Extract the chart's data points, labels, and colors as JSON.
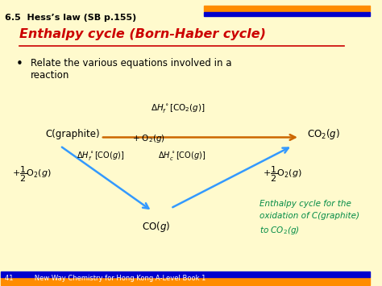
{
  "bg_color": "#FFFACD",
  "header_text": "6.5  Hess’s law (SB p.155)",
  "title_text": "Enthalpy cycle (Born-Haber cycle)",
  "title_color": "#CC0000",
  "bullet_text": "Relate the various equations involved in a\nreaction",
  "top_bar_colors": [
    "#FF8C00",
    "#0000CD"
  ],
  "footer_text": "41          New Way Chemistry for Hong Kong A-Level Book 1",
  "footer_bar_colors": [
    "#FF8C00",
    "#0000CD"
  ],
  "arrow_top_color": "#CC6600",
  "arrow_left_color": "#3399FF",
  "arrow_right_color": "#3399FF",
  "node_C_graphite": "C(graphite)",
  "node_CO2": "CO$_2$($g$)",
  "node_CO": "CO($g$)",
  "label_top_line1": "$\\Delta H_f^\\circ$[CO$_2$($g$)]",
  "label_top_line2": "+ O$_2$($g$)",
  "label_left_side": "$+ \\dfrac{1}{2}$O$_2$($g$)",
  "label_right_side": "$+ \\dfrac{1}{2}$O$_2$($g$)",
  "label_left_arrow1": "$\\Delta H_f^\\circ$[CO($g$)]",
  "label_left_arrow2": "$\\Delta H_c^\\circ$[CO($g$)]",
  "annotation_color": "#008B45",
  "annotation_text": "Enthalpy cycle for the\noxidation of C(graphite)\nto CO$_2$($g$)"
}
